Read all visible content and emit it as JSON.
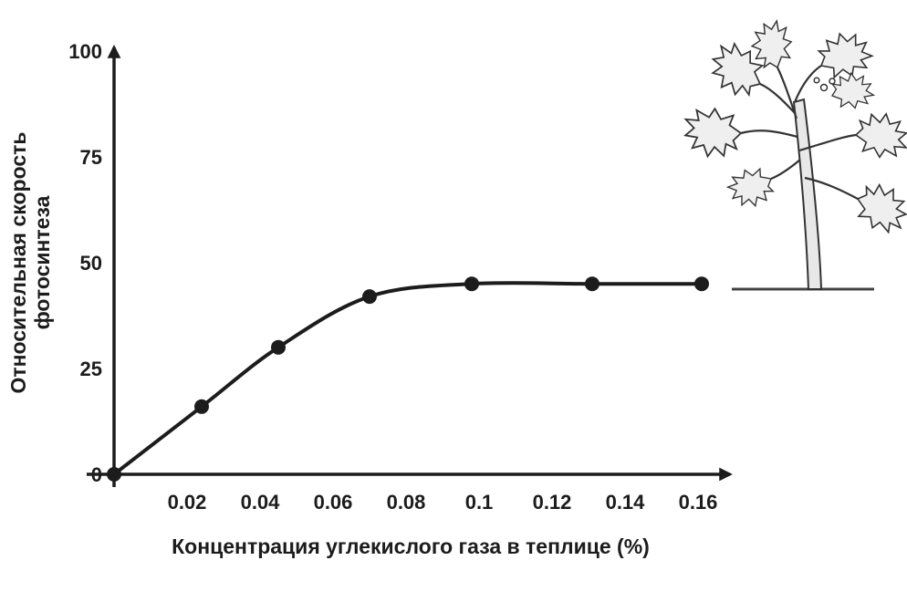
{
  "figure": {
    "background": "#ffffff"
  },
  "chart_data": {
    "type": "line",
    "title": "",
    "xlabel": "Концентрация углекислого газа в теплице (%)",
    "ylabel": "Относительная скорость фотосинтеза",
    "ylabel_lines": [
      "Относительная скорость",
      "фотосинтеза"
    ],
    "series": [
      {
        "name": "Относительная скорость фотосинтеза",
        "x": [
          0,
          0.024,
          0.045,
          0.07,
          0.098,
          0.131,
          0.161
        ],
        "y": [
          0,
          16,
          30,
          42,
          45,
          45,
          45
        ]
      }
    ],
    "x_ticks": [
      "0.02",
      "0.04",
      "0.06",
      "0.08",
      "0.1",
      "0.12",
      "0.14",
      "0.16"
    ],
    "x_tick_values": [
      0.02,
      0.04,
      0.06,
      0.08,
      0.1,
      0.12,
      0.14,
      0.16
    ],
    "y_ticks": [
      "0",
      "25",
      "50",
      "75",
      "100"
    ],
    "y_tick_values": [
      0,
      25,
      50,
      75,
      100
    ],
    "xlim": [
      0,
      0.16
    ],
    "ylim": [
      0,
      100
    ],
    "grid": false,
    "legend": "none",
    "line_color": "#1c1c1c",
    "marker": "filled-circle",
    "marker_color": "#1c1c1c",
    "axis_color": "#1c1c1c"
  },
  "icons": {
    "plant": "tomato-plant-line-art-illustration"
  }
}
